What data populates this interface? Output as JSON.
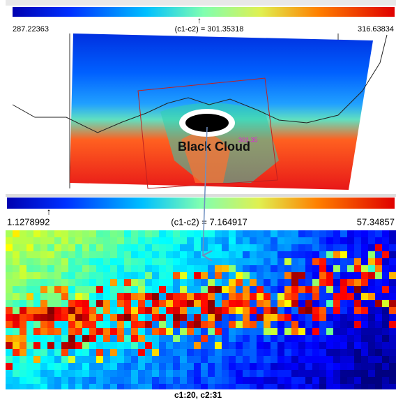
{
  "top_panel": {
    "min_label": "287.22363",
    "center_label": "(c1-c2) = 301.35318",
    "max_label": "316.63834",
    "probe_value": "301.35",
    "annotation": "Black Cloud"
  },
  "bottom_panel": {
    "min_label": "1.1278992",
    "center_label": "(c1-c2) = 7.164917",
    "max_label": "57.34857"
  },
  "caption": "c1:20, c2:31"
}
